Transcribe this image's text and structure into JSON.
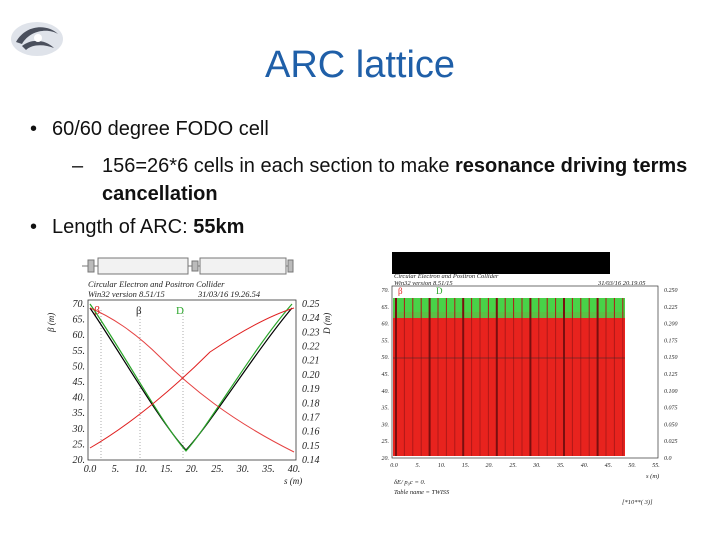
{
  "slide": {
    "title": "ARC lattice",
    "bullet1": "60/60 degree FODO cell",
    "sub_prefix": "156=26*6 cells in each section to make ",
    "sub_bold": "resonance driving terms cancellation",
    "bullet2_prefix": "Length of ARC: ",
    "bullet2_bold": "55km",
    "bullet_char": "•",
    "dash_char": "–"
  },
  "left_plot": {
    "header_line1": "Circular Electron and Positron Collider",
    "header_line2": "Win32 version 8.51/15",
    "header_date": "31/03/16  19.26.54",
    "legend": [
      "β",
      "β",
      "D"
    ],
    "y_left_label": "β (m)",
    "y_right_label": "D (m)",
    "x_label": "s (m)",
    "y_left_ticks": [
      "70.",
      "65.",
      "60.",
      "55.",
      "50.",
      "45.",
      "40.",
      "35.",
      "30.",
      "25.",
      "20."
    ],
    "y_right_ticks": [
      "0.25",
      "0.24",
      "0.23",
      "0.22",
      "0.21",
      "0.20",
      "0.19",
      "0.18",
      "0.17",
      "0.16",
      "0.15",
      "0.14"
    ],
    "x_ticks": [
      "0.0",
      "5.",
      "10.",
      "15.",
      "20.",
      "25.",
      "30.",
      "35.",
      "40."
    ]
  },
  "right_plot": {
    "header_line1": "Circular Electron and Positron Collider",
    "header_line2": "Win32 version 8.51/15",
    "header_date": "31/03/16  20.19.05",
    "legend": [
      "β",
      "D"
    ],
    "y_left_ticks": [
      "70.",
      "65.",
      "60.",
      "55.",
      "50.",
      "45.",
      "40.",
      "35.",
      "30.",
      "25.",
      "20."
    ],
    "y_right_ticks": [
      "0.250",
      "0.225",
      "0.200",
      "0.175",
      "0.150",
      "0.125",
      "0.100",
      "0.075",
      "0.050",
      "0.025",
      "0.0"
    ],
    "x_ticks": [
      "0.0",
      "5.",
      "10.",
      "15.",
      "20.",
      "25.",
      "30.",
      "35.",
      "40.",
      "45.",
      "50.",
      "55."
    ],
    "x_label": "s (m)",
    "footer1": "δE/ p₀c = 0.",
    "footer2": "Table name = TWISS",
    "footer3": "[*10**( 3)]"
  },
  "colors": {
    "title": "#1f5fa8",
    "beta_x": "#000000",
    "beta_y": "#e02020",
    "dispersion": "#2aa52a",
    "red_fill": "#e8231e",
    "green_fill": "#3ec93e",
    "top_bar": "#000000"
  }
}
